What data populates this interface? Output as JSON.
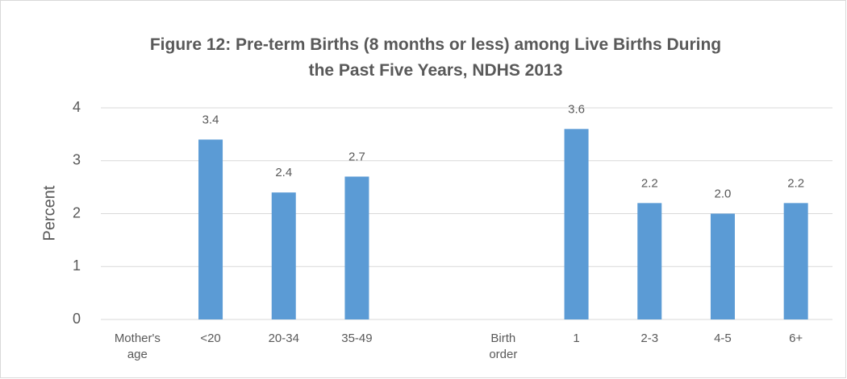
{
  "chart_data": {
    "type": "bar",
    "title": "Figure 12: Pre-term Births (8 months or less) among Live Births During the Past Five Years, NDHS 2013",
    "ylabel": "Percent",
    "categories": [
      "Mother's age",
      "<20",
      "20-34",
      "35-49",
      null,
      "Birth order",
      "1",
      "2-3",
      "4-5",
      "6+"
    ],
    "values": [
      null,
      3.4,
      2.4,
      2.7,
      null,
      null,
      3.6,
      2.2,
      2.0,
      2.2
    ],
    "value_labels": [
      null,
      "3.4",
      "2.4",
      "2.7",
      null,
      null,
      "3.6",
      "2.2",
      "2.0",
      "2.2"
    ],
    "color": "#5b9bd5",
    "ylim": [
      0,
      4
    ],
    "yticks": [
      0,
      1,
      2,
      3,
      4
    ],
    "grid": true
  }
}
